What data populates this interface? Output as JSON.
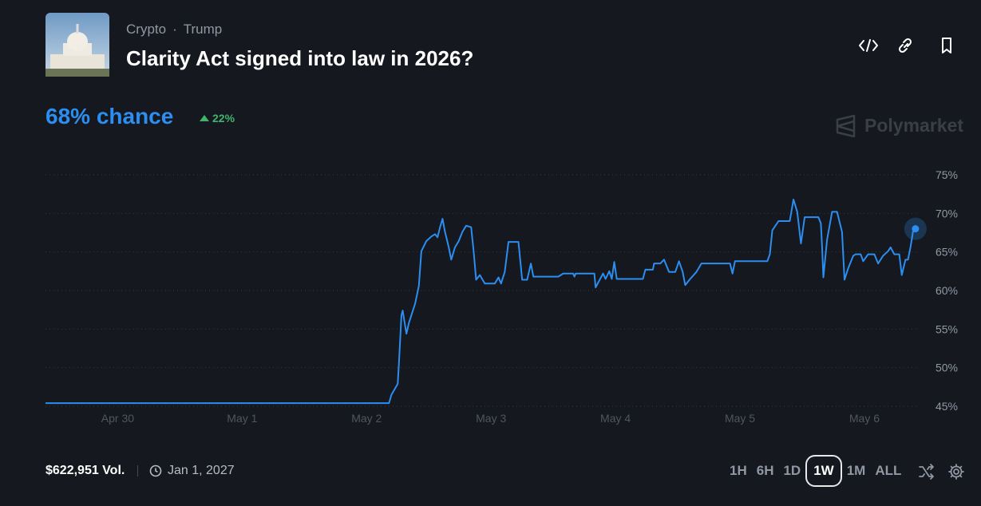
{
  "header": {
    "tags": [
      "Crypto",
      "Trump"
    ],
    "title": "Clarity Act signed into law in 2026?"
  },
  "odds": {
    "chance": "68% chance",
    "change": "22%"
  },
  "brand": "Polymarket",
  "footer": {
    "volume": "$622,951 Vol.",
    "end_date": "Jan 1, 2027",
    "ranges": [
      "1H",
      "6H",
      "1D",
      "1W",
      "1M",
      "ALL"
    ],
    "selected_range": "1W"
  },
  "chart_data": {
    "type": "line",
    "color": "#2b8ef0",
    "grid": true,
    "xlim": [
      -0.58,
      6.43
    ],
    "xticks": [
      {
        "value": 0,
        "label": "Apr 30"
      },
      {
        "value": 1,
        "label": "May 1"
      },
      {
        "value": 2,
        "label": "May 2"
      },
      {
        "value": 3,
        "label": "May 3"
      },
      {
        "value": 4,
        "label": "May 4"
      },
      {
        "value": 5,
        "label": "May 5"
      },
      {
        "value": 6,
        "label": "May 6"
      }
    ],
    "ylim": [
      45,
      75
    ],
    "yticks": [
      {
        "value": 45,
        "label": "45%"
      },
      {
        "value": 50,
        "label": "50%"
      },
      {
        "value": 55,
        "label": "55%"
      },
      {
        "value": 60,
        "label": "60%"
      },
      {
        "value": 65,
        "label": "65%"
      },
      {
        "value": 70,
        "label": "70%"
      },
      {
        "value": 75,
        "label": "75%"
      }
    ],
    "x": [
      -0.58,
      2.18,
      2.2,
      2.25,
      2.26,
      2.28,
      2.29,
      2.32,
      2.34,
      2.36,
      2.39,
      2.42,
      2.44,
      2.48,
      2.52,
      2.55,
      2.57,
      2.59,
      2.61,
      2.63,
      2.66,
      2.68,
      2.71,
      2.74,
      2.77,
      2.8,
      2.84,
      2.86,
      2.88,
      2.91,
      2.95,
      3.03,
      3.06,
      3.08,
      3.11,
      3.14,
      3.22,
      3.25,
      3.29,
      3.32,
      3.34,
      3.54,
      3.58,
      3.66,
      3.67,
      3.68,
      3.83,
      3.84,
      3.88,
      3.9,
      3.92,
      3.95,
      3.97,
      3.99,
      4.01,
      4.22,
      4.24,
      4.3,
      4.31,
      4.36,
      4.39,
      4.43,
      4.48,
      4.51,
      4.54,
      4.56,
      4.6,
      4.65,
      4.69,
      4.92,
      4.94,
      4.96,
      5.22,
      5.24,
      5.26,
      5.31,
      5.4,
      5.43,
      5.46,
      5.49,
      5.52,
      5.63,
      5.65,
      5.66,
      5.67,
      5.7,
      5.74,
      5.78,
      5.82,
      5.84,
      5.87,
      5.91,
      5.93,
      5.97,
      5.99,
      6.03,
      6.08,
      6.11,
      6.15,
      6.19,
      6.21,
      6.24,
      6.28,
      6.3,
      6.33,
      6.35,
      6.37,
      6.39,
      6.41
    ],
    "values": [
      45.4,
      45.4,
      46.5,
      47.9,
      50.6,
      56.8,
      57.4,
      54.4,
      55.8,
      56.8,
      58.3,
      60.6,
      65.1,
      66.4,
      67.0,
      67.3,
      66.9,
      68.2,
      69.3,
      67.6,
      65.6,
      64.0,
      65.6,
      66.4,
      67.6,
      68.4,
      68.2,
      65.1,
      61.4,
      62.0,
      60.9,
      60.9,
      61.7,
      60.9,
      62.4,
      66.3,
      66.3,
      61.4,
      61.4,
      63.5,
      61.8,
      61.8,
      62.2,
      62.2,
      61.8,
      62.2,
      62.2,
      60.4,
      61.6,
      62.2,
      61.5,
      62.5,
      61.5,
      63.7,
      61.5,
      61.5,
      62.7,
      62.7,
      63.5,
      63.5,
      64.0,
      62.4,
      62.4,
      63.8,
      62.4,
      60.7,
      61.5,
      62.4,
      63.5,
      63.5,
      62.2,
      63.8,
      63.8,
      64.7,
      67.8,
      69.0,
      69.0,
      71.8,
      70.2,
      66.1,
      69.5,
      69.5,
      68.7,
      65.6,
      61.7,
      66.6,
      70.2,
      70.2,
      67.6,
      61.4,
      62.9,
      64.5,
      64.7,
      64.7,
      63.8,
      64.7,
      64.7,
      63.5,
      64.5,
      65.1,
      65.6,
      64.7,
      64.7,
      62.0,
      64.0,
      64.0,
      65.6,
      67.6,
      68.0
    ]
  }
}
